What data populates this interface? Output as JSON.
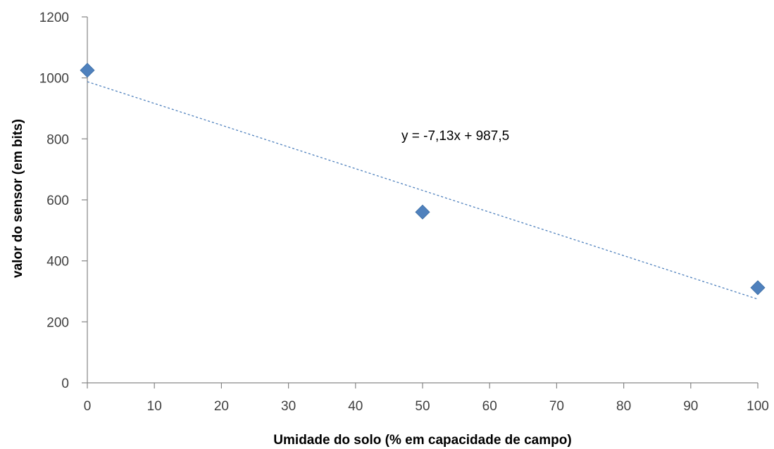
{
  "chart_data": {
    "type": "scatter",
    "xlabel": "Umidade do solo  (% em capacidade de campo)",
    "ylabel": "valor do sensor (em bits)",
    "xlim": [
      0,
      100
    ],
    "ylim": [
      0,
      1200
    ],
    "x_ticks": [
      "0",
      "10",
      "20",
      "30",
      "40",
      "50",
      "60",
      "70",
      "80",
      "90",
      "100"
    ],
    "y_ticks": [
      "0",
      "200",
      "400",
      "600",
      "800",
      "1000",
      "1200"
    ],
    "grid": false,
    "legend": "none",
    "series": [
      {
        "points": [
          {
            "x": 0,
            "y": 1025
          },
          {
            "x": 50,
            "y": 560
          },
          {
            "x": 100,
            "y": 312
          }
        ],
        "color": "#4f81bd",
        "marker": "diamond"
      }
    ],
    "trendline": {
      "type": "linear",
      "slope": -7.13,
      "intercept": 987.5,
      "color": "#4f81bd",
      "style": "dashed",
      "equation_label": "y = -7,13x + 987,5"
    }
  }
}
